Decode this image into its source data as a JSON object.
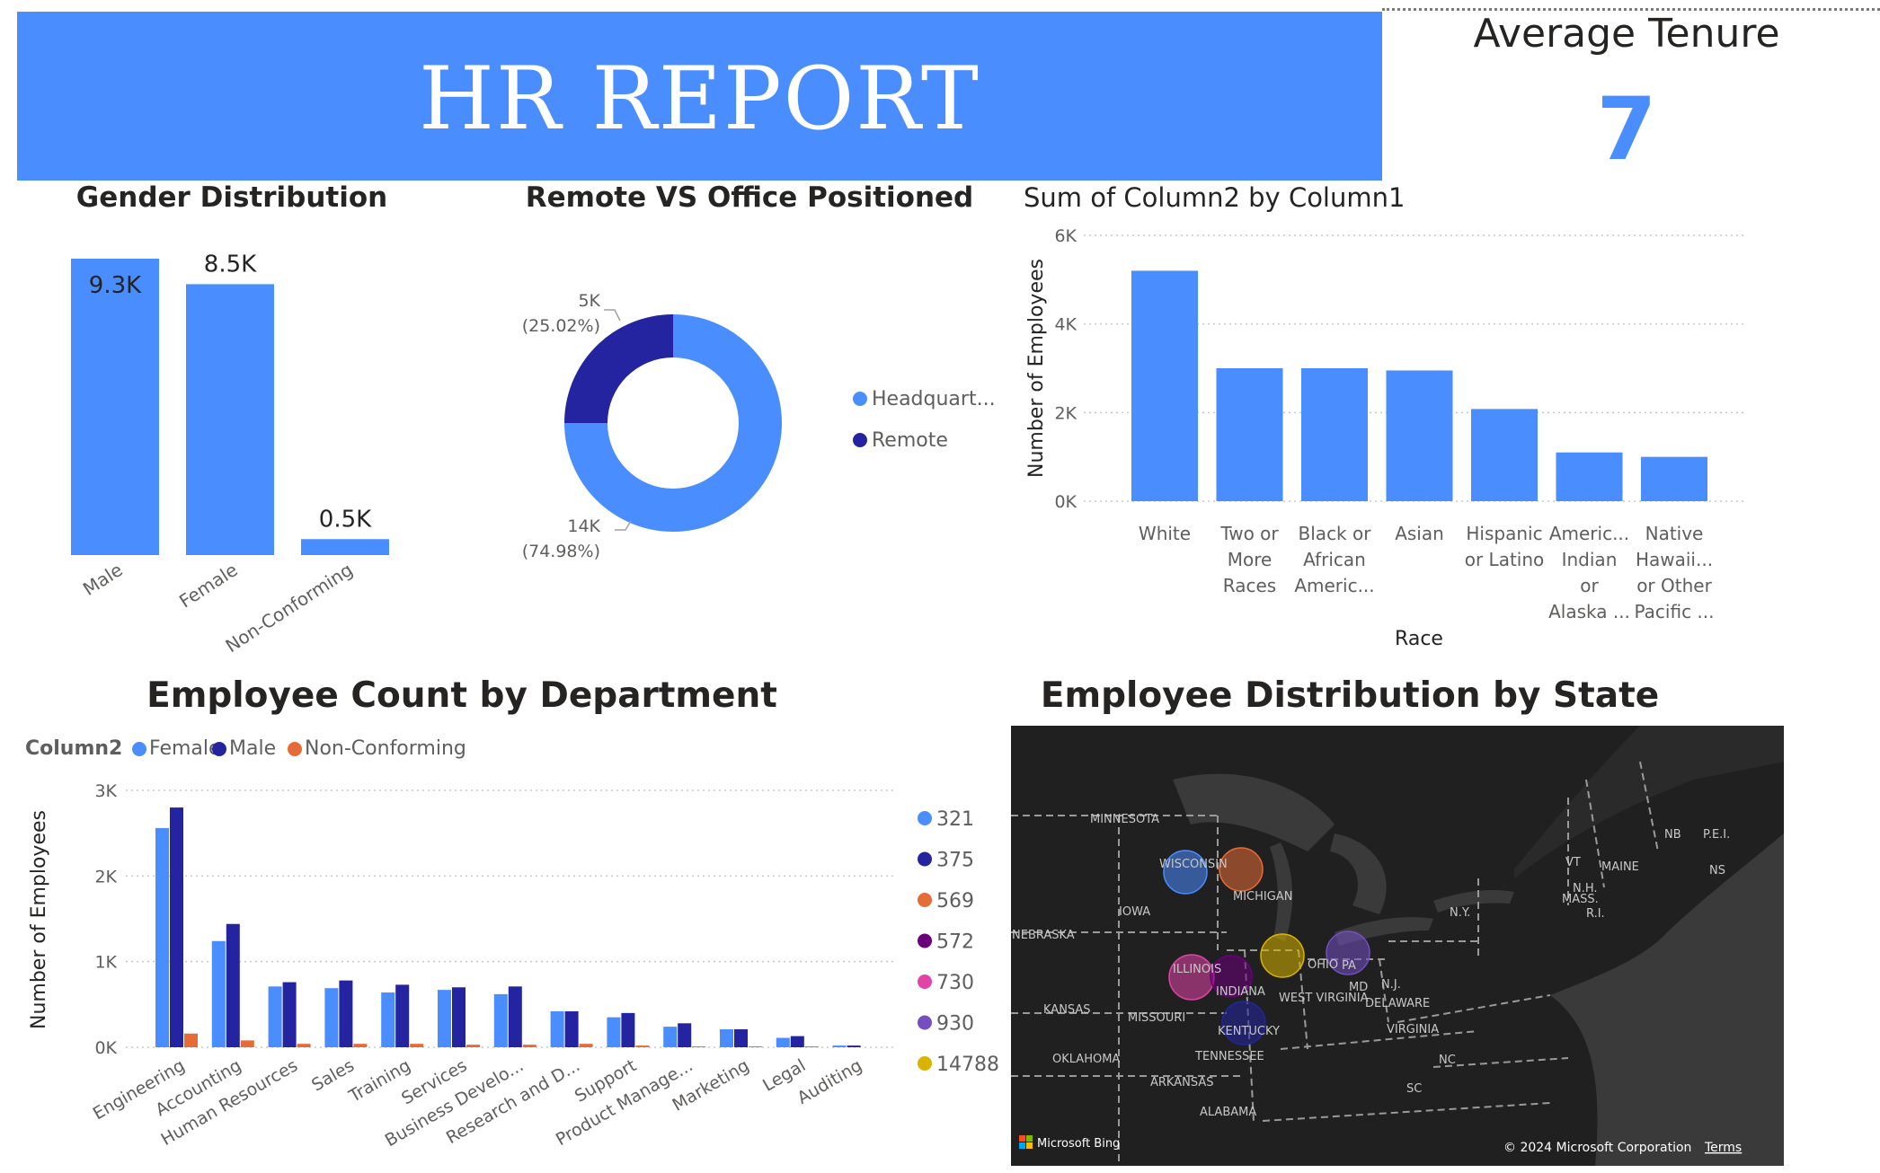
{
  "header": {
    "title": "HR REPORT",
    "tenure_label": "Average Tenure",
    "tenure_value": "7"
  },
  "colors": {
    "banner": "#4a8dff",
    "female": "#4a8dff",
    "male": "#2424a0",
    "non_conforming": "#e66c37",
    "headquarters": "#4a8dff",
    "remote": "#2424a0"
  },
  "chart_data": [
    {
      "id": "gender",
      "type": "bar",
      "title": "Gender Distribution",
      "categories": [
        "Male",
        "Female",
        "Non-Conforming"
      ],
      "values": [
        9300,
        8500,
        500
      ],
      "data_labels": [
        "9.3K",
        "8.5K",
        "0.5K"
      ],
      "ylim": [
        0,
        9300
      ]
    },
    {
      "id": "remote",
      "type": "pie",
      "title": "Remote VS Office Positioned",
      "labels": [
        "Headquart...",
        "Remote"
      ],
      "values": [
        74.98,
        25.02
      ],
      "data_labels": [
        {
          "value": "14K",
          "pct": "(74.98%)"
        },
        {
          "value": "5K",
          "pct": "(25.02%)"
        }
      ]
    },
    {
      "id": "race",
      "type": "bar",
      "title": "Sum of Column2 by Column1",
      "xlabel": "Race",
      "ylabel": "Number of Employees",
      "categories": [
        [
          "White"
        ],
        [
          "Two or",
          "More",
          "Races"
        ],
        [
          "Black or",
          "African",
          "Americ..."
        ],
        [
          "Asian"
        ],
        [
          "Hispanic",
          "or Latino"
        ],
        [
          "Americ...",
          "Indian",
          "or",
          "Alaska ..."
        ],
        [
          "Native",
          "Hawaii...",
          "or Other",
          "Pacific ..."
        ]
      ],
      "values": [
        5200,
        3000,
        3000,
        2950,
        2080,
        1100,
        1000
      ],
      "ylim": [
        0,
        6000
      ],
      "yticks": [
        {
          "v": 0,
          "label": "0K"
        },
        {
          "v": 2000,
          "label": "2K"
        },
        {
          "v": 4000,
          "label": "4K"
        },
        {
          "v": 6000,
          "label": "6K"
        }
      ],
      "grid": true
    },
    {
      "id": "department",
      "type": "bar",
      "title": "Employee Count by Department",
      "ylabel": "Number of Employees",
      "legend_title": "Column2",
      "categories": [
        "Engineering",
        "Accounting",
        "Human Resources",
        "Sales",
        "Training",
        "Services",
        "Business Develo...",
        "Research and D...",
        "Support",
        "Product Manage...",
        "Marketing",
        "Legal",
        "Auditing"
      ],
      "series": [
        {
          "name": "Female",
          "values": [
            2560,
            1240,
            710,
            690,
            640,
            670,
            620,
            420,
            350,
            240,
            210,
            110,
            20
          ]
        },
        {
          "name": "Male",
          "values": [
            2800,
            1440,
            760,
            780,
            730,
            700,
            710,
            420,
            400,
            280,
            210,
            130,
            20
          ]
        },
        {
          "name": "Non-Conforming",
          "values": [
            160,
            80,
            40,
            40,
            40,
            30,
            30,
            40,
            20,
            10,
            10,
            10,
            0
          ]
        }
      ],
      "ylim": [
        0,
        3000
      ],
      "yticks": [
        {
          "v": 0,
          "label": "0K"
        },
        {
          "v": 1000,
          "label": "1K"
        },
        {
          "v": 2000,
          "label": "2K"
        },
        {
          "v": 3000,
          "label": "3K"
        }
      ],
      "grid": true,
      "side_legend": [
        {
          "label": "321",
          "color": "#4a8dff"
        },
        {
          "label": "375",
          "color": "#2424a0"
        },
        {
          "label": "569",
          "color": "#e66c37"
        },
        {
          "label": "572",
          "color": "#6b007b"
        },
        {
          "label": "730",
          "color": "#e044a7"
        },
        {
          "label": "930",
          "color": "#744ec2"
        },
        {
          "label": "14788",
          "color": "#d9b300"
        }
      ]
    }
  ],
  "map": {
    "title": "Employee Distribution by State",
    "state_labels": [
      "MINNESOTA",
      "WISCONSIN",
      "MICHIGAN",
      "IOWA",
      "NEBRASKA",
      "ILLINOIS",
      "INDIANA",
      "OHIO",
      "PA",
      "N.Y.",
      "KANSAS",
      "MISSOURI",
      "KENTUCKY",
      "WEST VIRGINIA",
      "MD",
      "N.J.",
      "DELAWARE",
      "VIRGINIA",
      "TENNESSEE",
      "OKLAHOMA",
      "ARKANSAS",
      "NC",
      "SC",
      "ALABAMA",
      "VT",
      "N.H.",
      "MAINE",
      "MASS.",
      "R.I.",
      "NB",
      "P.E.I.",
      "NS"
    ],
    "bubbles": [
      {
        "state": "WISCONSIN",
        "color": "#4a8dff"
      },
      {
        "state": "MICHIGAN",
        "color": "#e66c37"
      },
      {
        "state": "ILLINOIS",
        "color": "#e044a7"
      },
      {
        "state": "INDIANA",
        "color": "#6b007b"
      },
      {
        "state": "OHIO",
        "color": "#d9b300"
      },
      {
        "state": "PA",
        "color": "#744ec2"
      },
      {
        "state": "KENTUCKY",
        "color": "#2424a0"
      }
    ],
    "attribution": "Microsoft Bing",
    "copyright": "© 2024 Microsoft Corporation",
    "terms": "Terms"
  }
}
